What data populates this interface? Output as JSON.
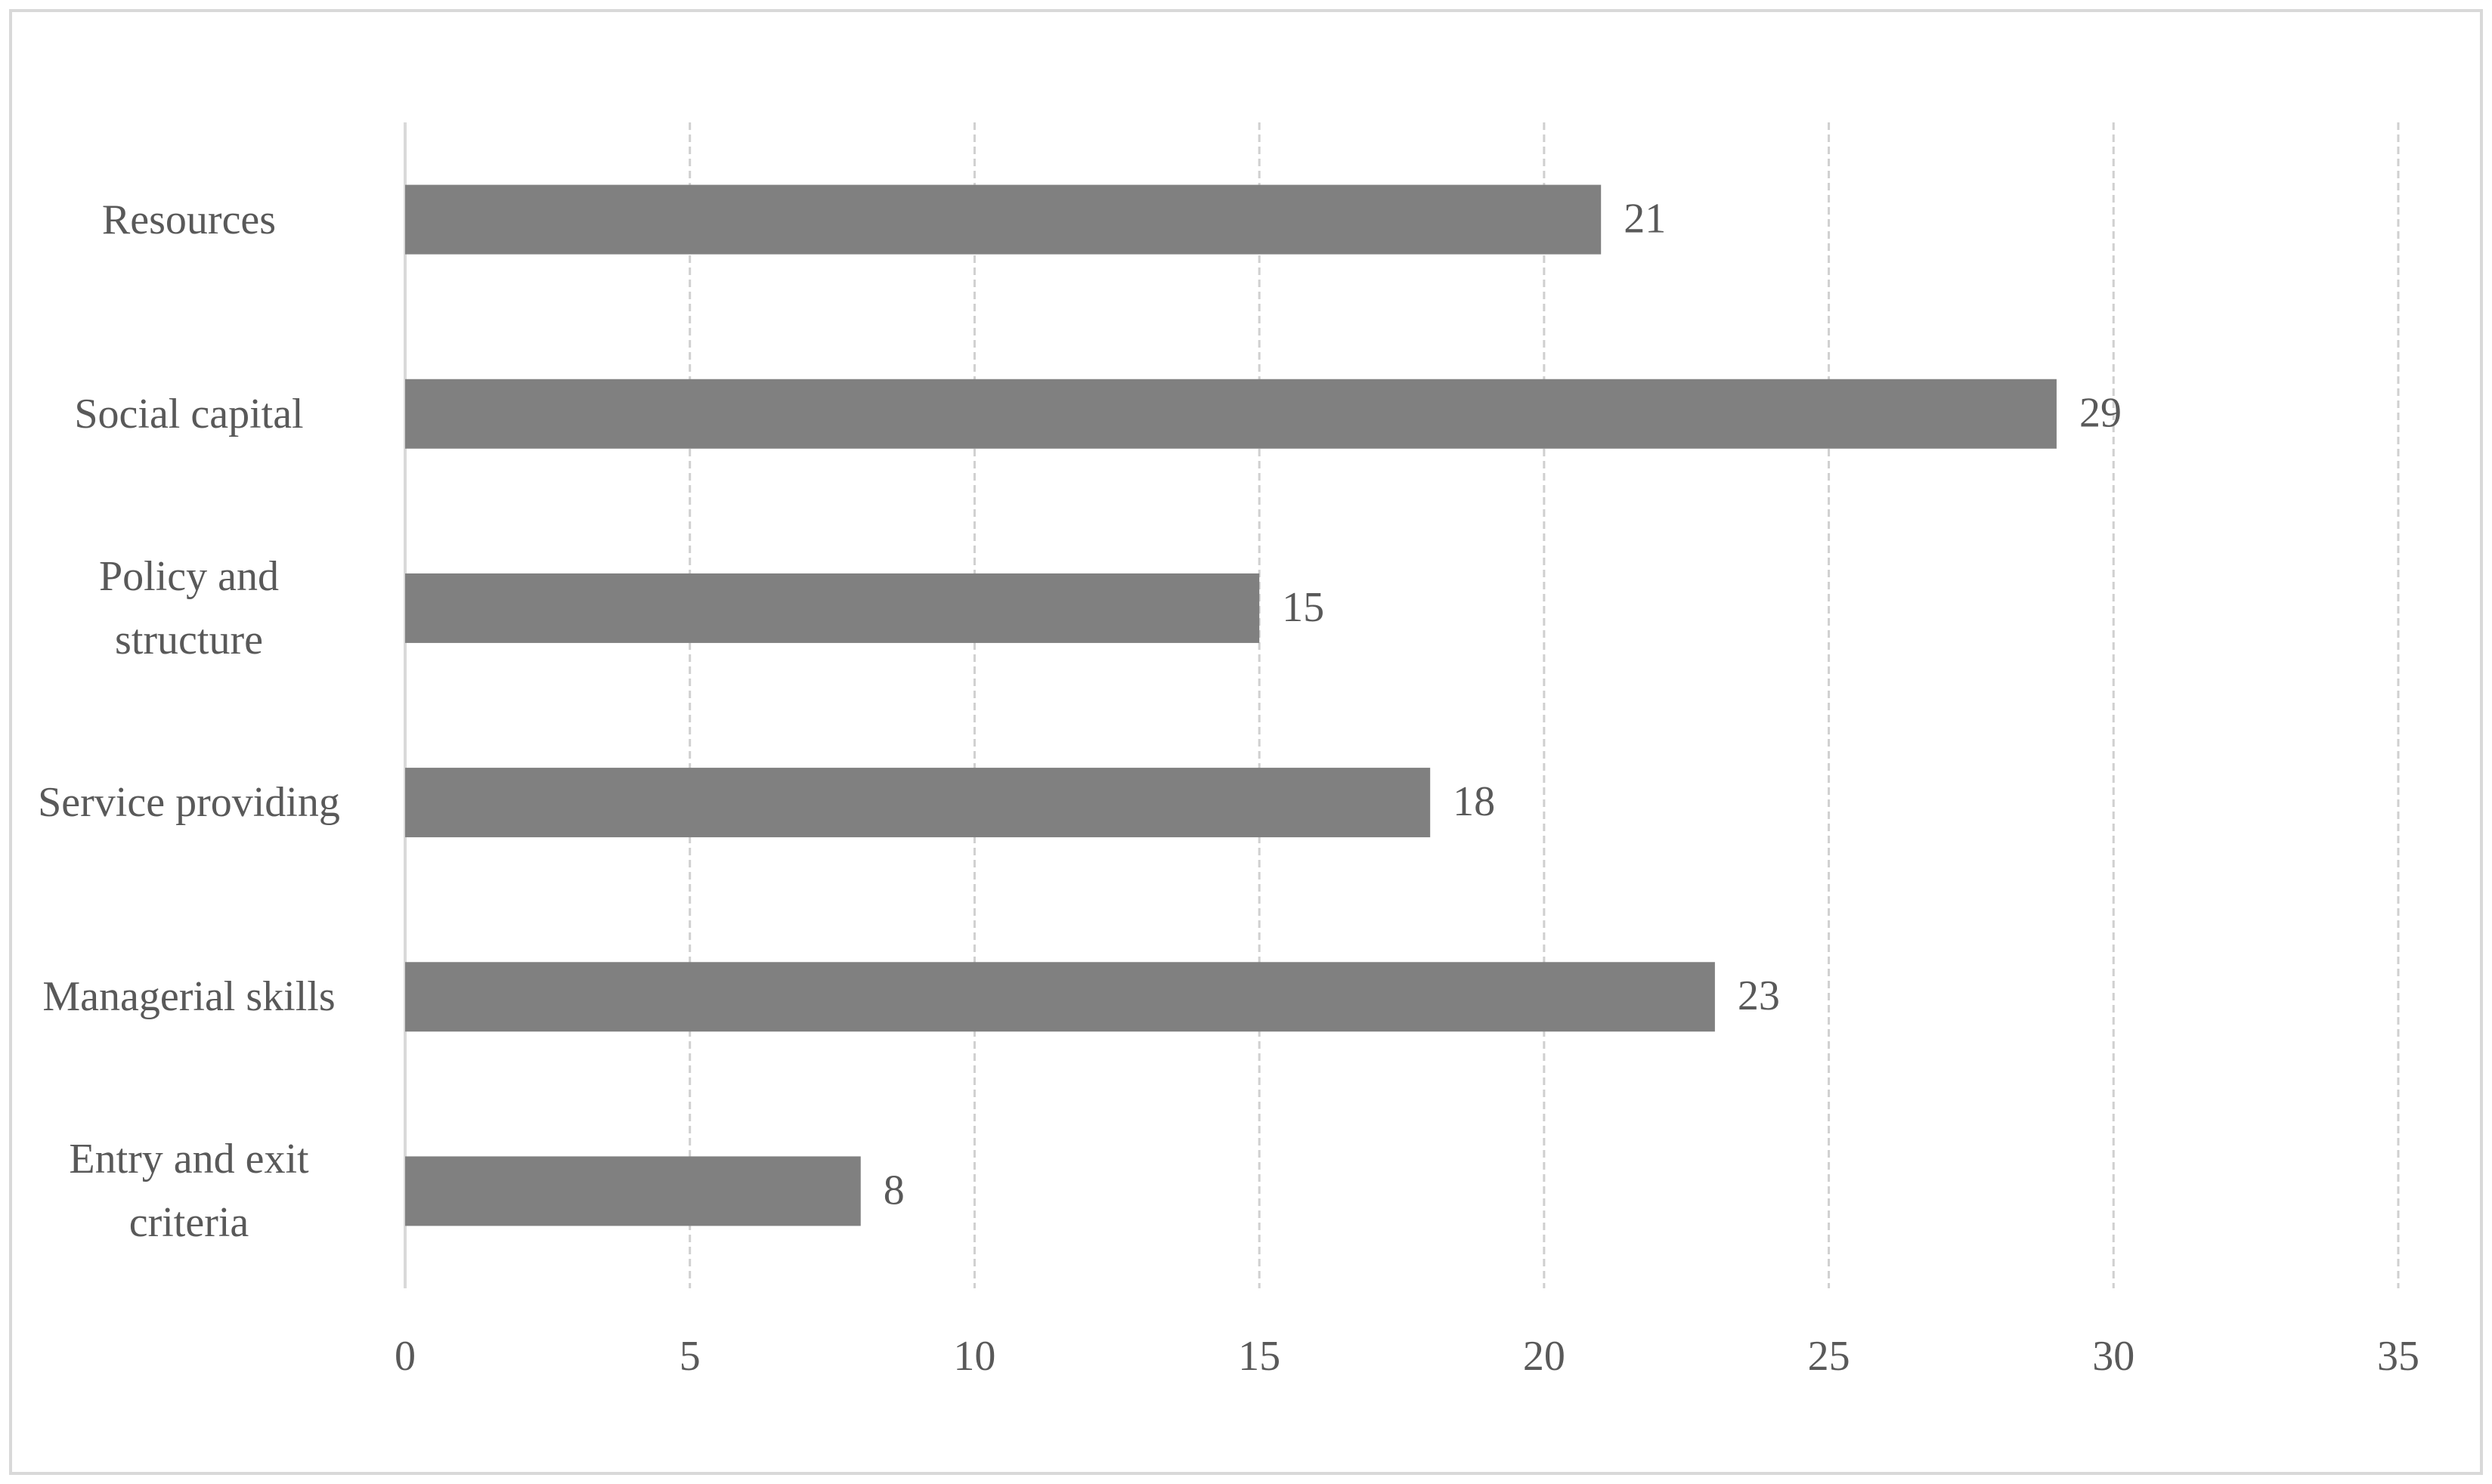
{
  "chart_data": {
    "type": "barh",
    "categories": [
      "Resources",
      "Social capital",
      "Policy and structure",
      "Service providing",
      "Managerial skills",
      "Entry and exit criteria"
    ],
    "values": [
      21,
      29,
      15,
      18,
      23,
      8
    ],
    "color": "#808080",
    "xlim": [
      0,
      35
    ],
    "xticks": [
      0,
      5,
      10,
      15,
      20,
      25,
      30,
      35
    ],
    "grid": true
  }
}
